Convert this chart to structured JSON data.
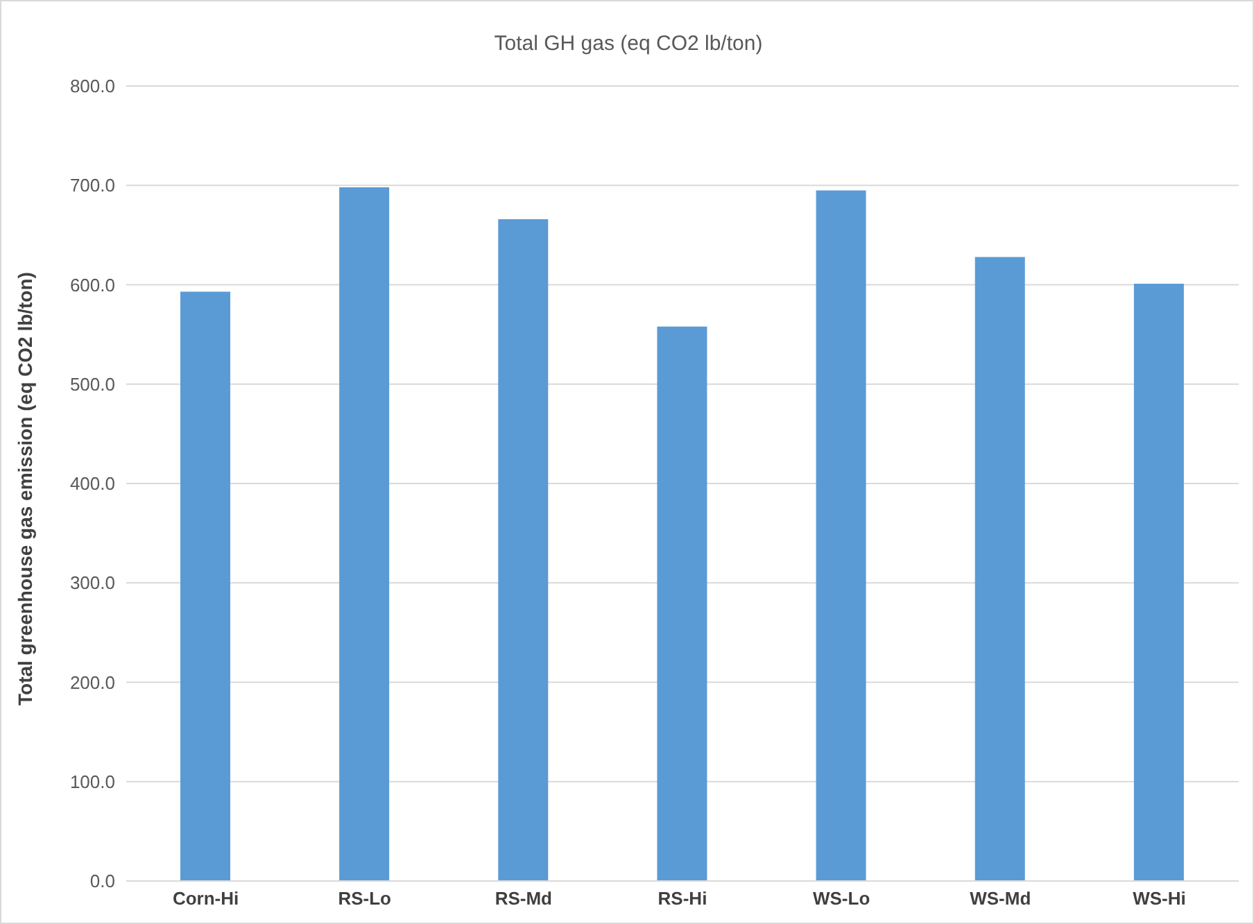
{
  "chart_data": {
    "type": "bar",
    "title": "Total GH gas (eq CO2 lb/ton)",
    "ylabel": "Total greenhouse gas emission (eq CO2 lb/ton)",
    "categories": [
      "Corn-Hi",
      "RS-Lo",
      "RS-Md",
      "RS-Hi",
      "WS-Lo",
      "WS-Md",
      "WS-Hi"
    ],
    "values": [
      593,
      698,
      666,
      558,
      695,
      628,
      601
    ],
    "color": "#5b9bd5",
    "ylim": [
      0,
      800
    ],
    "yticks": [
      {
        "value": 0,
        "label": "0.0"
      },
      {
        "value": 100,
        "label": "100.0"
      },
      {
        "value": 200,
        "label": "200.0"
      },
      {
        "value": 300,
        "label": "300.0"
      },
      {
        "value": 400,
        "label": "400.0"
      },
      {
        "value": 500,
        "label": "500.0"
      },
      {
        "value": 600,
        "label": "600.0"
      },
      {
        "value": 700,
        "label": "700.0"
      },
      {
        "value": 800,
        "label": "800.0"
      }
    ],
    "grid": "y"
  }
}
